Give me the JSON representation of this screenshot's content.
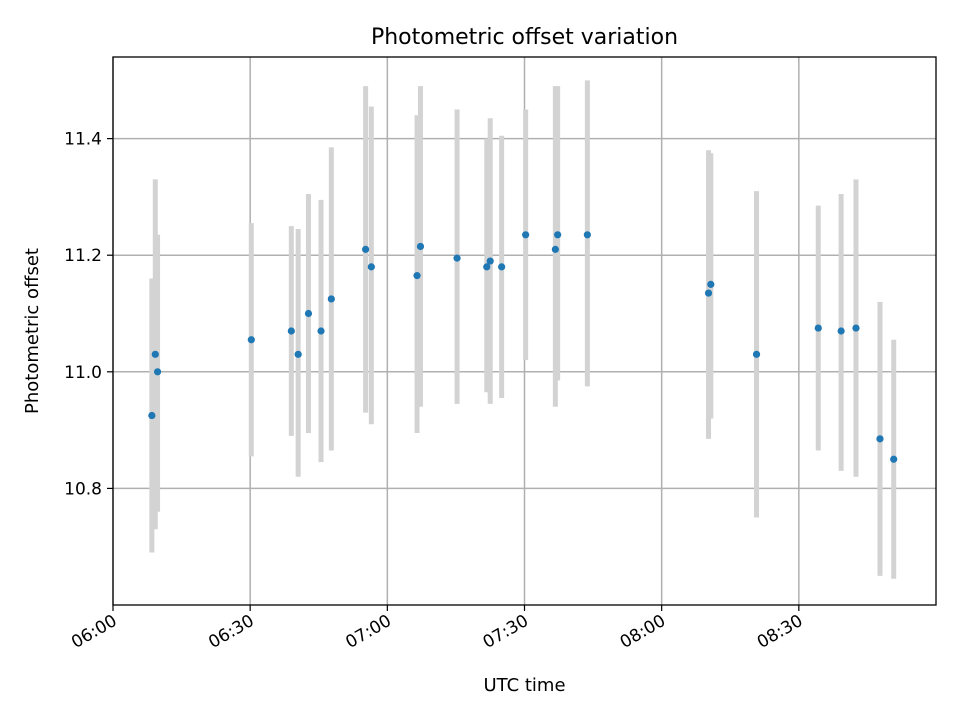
{
  "chart_data": {
    "type": "scatter",
    "title": "Photometric offset variation",
    "xlabel": "UTC time",
    "ylabel": "Photometric offset",
    "x_unit": "UTC time (HH:MM)",
    "xlim": [
      "06:00",
      "09:00"
    ],
    "ylim": [
      10.6,
      11.54
    ],
    "x_ticks": [
      "06:00",
      "06:30",
      "07:00",
      "07:30",
      "08:00",
      "08:30"
    ],
    "y_ticks": [
      10.8,
      11.0,
      11.2,
      11.4
    ],
    "y_tick_labels": [
      "10.8",
      "11.0",
      "11.2",
      "11.4"
    ],
    "grid": true,
    "colors": {
      "marker": "#1f77b4",
      "errorbar": "#d3d3d3",
      "grid": "#b0b0b0"
    },
    "series": [
      {
        "points": [
          {
            "x": "06:08:30",
            "y": 10.925,
            "ylow": 10.69,
            "yhigh": 11.16
          },
          {
            "x": "06:09:15",
            "y": 11.03,
            "ylow": 10.73,
            "yhigh": 11.33
          },
          {
            "x": "06:09:45",
            "y": 11.0,
            "ylow": 10.76,
            "yhigh": 11.235
          },
          {
            "x": "06:30:15",
            "y": 11.055,
            "ylow": 10.855,
            "yhigh": 11.255
          },
          {
            "x": "06:39:00",
            "y": 11.07,
            "ylow": 10.89,
            "yhigh": 11.25
          },
          {
            "x": "06:40:30",
            "y": 11.03,
            "ylow": 10.82,
            "yhigh": 11.245
          },
          {
            "x": "06:42:45",
            "y": 11.1,
            "ylow": 10.895,
            "yhigh": 11.305
          },
          {
            "x": "06:45:30",
            "y": 11.07,
            "ylow": 10.845,
            "yhigh": 11.295
          },
          {
            "x": "06:47:45",
            "y": 11.125,
            "ylow": 10.865,
            "yhigh": 11.385
          },
          {
            "x": "06:55:15",
            "y": 11.21,
            "ylow": 10.93,
            "yhigh": 11.49
          },
          {
            "x": "06:56:30",
            "y": 11.18,
            "ylow": 10.91,
            "yhigh": 11.455
          },
          {
            "x": "07:06:30",
            "y": 11.165,
            "ylow": 10.895,
            "yhigh": 11.44
          },
          {
            "x": "07:07:15",
            "y": 11.215,
            "ylow": 10.94,
            "yhigh": 11.49
          },
          {
            "x": "07:15:15",
            "y": 11.195,
            "ylow": 10.945,
            "yhigh": 11.45
          },
          {
            "x": "07:21:45",
            "y": 11.18,
            "ylow": 10.965,
            "yhigh": 11.4
          },
          {
            "x": "07:22:30",
            "y": 11.19,
            "ylow": 10.945,
            "yhigh": 11.435
          },
          {
            "x": "07:25:00",
            "y": 11.18,
            "ylow": 10.955,
            "yhigh": 11.405
          },
          {
            "x": "07:30:15",
            "y": 11.235,
            "ylow": 11.02,
            "yhigh": 11.45
          },
          {
            "x": "07:36:45",
            "y": 11.21,
            "ylow": 10.94,
            "yhigh": 11.49
          },
          {
            "x": "07:37:15",
            "y": 11.235,
            "ylow": 10.985,
            "yhigh": 11.49
          },
          {
            "x": "07:43:45",
            "y": 11.235,
            "ylow": 10.975,
            "yhigh": 11.5
          },
          {
            "x": "08:10:15",
            "y": 11.135,
            "ylow": 10.885,
            "yhigh": 11.38
          },
          {
            "x": "08:10:45",
            "y": 11.15,
            "ylow": 10.92,
            "yhigh": 11.375
          },
          {
            "x": "08:20:45",
            "y": 11.03,
            "ylow": 10.75,
            "yhigh": 11.31
          },
          {
            "x": "08:34:15",
            "y": 11.075,
            "ylow": 10.865,
            "yhigh": 11.285
          },
          {
            "x": "08:39:15",
            "y": 11.07,
            "ylow": 10.83,
            "yhigh": 11.305
          },
          {
            "x": "08:42:30",
            "y": 11.075,
            "ylow": 10.82,
            "yhigh": 11.33
          },
          {
            "x": "08:47:45",
            "y": 10.885,
            "ylow": 10.65,
            "yhigh": 11.12
          },
          {
            "x": "08:50:45",
            "y": 10.85,
            "ylow": 10.645,
            "yhigh": 11.055
          }
        ]
      }
    ]
  }
}
